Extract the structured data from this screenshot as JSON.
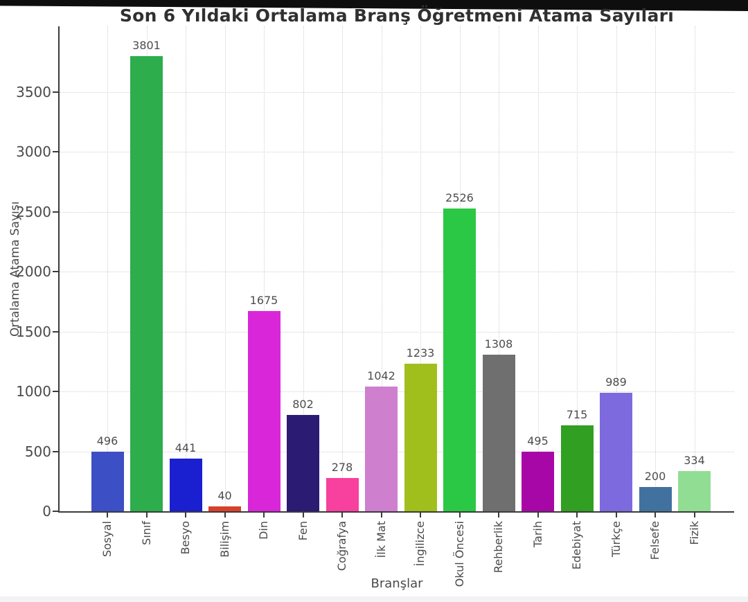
{
  "window": {
    "top_bar_color": "#0e0e0e",
    "background_color": "#ffffff",
    "bottom_strip_color": "#f3f3f5"
  },
  "chart_data": {
    "type": "bar",
    "title": "Son 6 Yıldaki Ortalama Branş Öğretmeni Atama Sayıları",
    "xlabel": "Branşlar",
    "ylabel": "Ortalama Atama Sayısı",
    "categories": [
      "Sosyal",
      "Sınıf",
      "Besyo",
      "Bilişim",
      "Din",
      "Fen",
      "Coğrafya",
      "İlk Mat",
      "İngilizce",
      "Okul Öncesi",
      "Rehberlik",
      "Tarih",
      "Edebiyat",
      "Türkçe",
      "Felsefe",
      "Fizik"
    ],
    "values": [
      496,
      3801,
      441,
      40,
      1675,
      802,
      278,
      1042,
      1233,
      2526,
      1308,
      495,
      715,
      989,
      200,
      334
    ],
    "bar_colors": [
      "#3d4fc4",
      "#2ead4c",
      "#1a1fd0",
      "#d8402c",
      "#d926d9",
      "#2b1b72",
      "#f8409e",
      "#ce7fce",
      "#a0bf1c",
      "#2bc845",
      "#6f6f6f",
      "#a807a8",
      "#319f22",
      "#7d6adf",
      "#41719f",
      "#92dd94"
    ],
    "ylim": [
      0,
      4050
    ],
    "yticks": [
      0,
      500,
      1000,
      1500,
      2000,
      2500,
      3000,
      3500
    ],
    "grid": true,
    "grid_axis": "both",
    "grid_style": "dotted",
    "legend": "none",
    "value_labels": true
  },
  "style": {
    "axis_color": "#3b3b3b",
    "grid_color": "#d0d0d0",
    "tick_label_color": "#4a4a4a",
    "value_label_color": "#4d4d4d",
    "title_color": "#303030"
  }
}
